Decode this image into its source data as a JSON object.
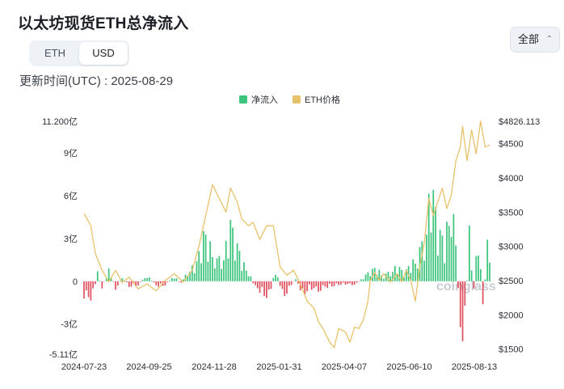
{
  "title": "以太坊现货ETH总净流入",
  "unit_tabs": {
    "eth": "ETH",
    "usd": "USD"
  },
  "updated_text": "更新时间(UTC) : 2025-08-29",
  "range_dropdown": {
    "selected": "全部"
  },
  "watermark": "coinglass",
  "chart_data": {
    "type": "bar+line",
    "x_labels": [
      "2024-07-23",
      "2024-09-25",
      "2024-11-28",
      "2025-01-31",
      "2025-04-07",
      "2025-06-10",
      "2025-08-13"
    ],
    "legend": [
      "净流入",
      "ETH价格"
    ],
    "colors": {
      "inflow_pos": "#3cc47c",
      "inflow_neg": "#e05260",
      "price": "#e8c26a"
    },
    "y_left": {
      "ticks": [
        "11.200亿",
        "9亿",
        "6亿",
        "3亿",
        "0",
        "-3亿",
        "-5.11亿"
      ],
      "tick_values": [
        11.2,
        9,
        6,
        3,
        0,
        -3,
        -5.11
      ],
      "min": -5.11,
      "max": 11.2,
      "unit": "亿 USD"
    },
    "y_right": {
      "ticks": [
        "$4826.113",
        "$4500",
        "$4000",
        "$3500",
        "$3000",
        "$2500",
        "$2000",
        "$1500"
      ],
      "tick_values": [
        4826.113,
        4500,
        4000,
        3500,
        3000,
        2500,
        2000,
        1500
      ],
      "min": 1460,
      "max": 4826.113
    },
    "inflow_knots": [
      [
        0,
        -1.2
      ],
      [
        2,
        -1.6
      ],
      [
        4,
        -1.1
      ],
      [
        6,
        0.7
      ],
      [
        8,
        -0.5
      ],
      [
        11,
        0.9
      ],
      [
        14,
        -0.6
      ],
      [
        17,
        0.3
      ],
      [
        20,
        -0.4
      ],
      [
        24,
        -0.3
      ],
      [
        28,
        0.5
      ],
      [
        32,
        -0.4
      ],
      [
        36,
        -0.3
      ],
      [
        40,
        0.4
      ],
      [
        43,
        -0.2
      ],
      [
        46,
        0.8
      ],
      [
        50,
        1.4
      ],
      [
        53,
        3.5
      ],
      [
        56,
        2.8
      ],
      [
        59,
        1.6
      ],
      [
        62,
        2.1
      ],
      [
        65,
        4.3
      ],
      [
        67,
        3.2
      ],
      [
        70,
        1.6
      ],
      [
        73,
        0.8
      ],
      [
        76,
        -0.6
      ],
      [
        79,
        -0.9
      ],
      [
        82,
        -1.3
      ],
      [
        85,
        1.0
      ],
      [
        88,
        -1.2
      ],
      [
        91,
        -0.7
      ],
      [
        94,
        0.3
      ],
      [
        97,
        -1.1
      ],
      [
        100,
        -0.5
      ],
      [
        103,
        -0.8
      ],
      [
        106,
        -0.6
      ],
      [
        109,
        -0.4
      ],
      [
        112,
        -0.3
      ],
      [
        115,
        -0.2
      ],
      [
        118,
        -0.3
      ],
      [
        121,
        -0.2
      ],
      [
        124,
        0.3
      ],
      [
        127,
        0.8
      ],
      [
        130,
        1.0
      ],
      [
        133,
        0.4
      ],
      [
        136,
        0.8
      ],
      [
        139,
        1.2
      ],
      [
        142,
        0.6
      ],
      [
        145,
        1.3
      ],
      [
        148,
        2.0
      ],
      [
        151,
        3.2
      ],
      [
        154,
        7.6
      ],
      [
        157,
        4.0
      ],
      [
        160,
        2.8
      ],
      [
        163,
        6.9
      ],
      [
        165,
        2.5
      ],
      [
        167,
        -4.6
      ],
      [
        169,
        -3.8
      ],
      [
        171,
        3.9
      ],
      [
        173,
        -0.5
      ],
      [
        175,
        4.0
      ],
      [
        177,
        -2.3
      ],
      [
        179,
        2.9
      ],
      [
        180,
        1.3
      ]
    ],
    "price_knots": [
      [
        0,
        3480
      ],
      [
        3,
        3300
      ],
      [
        5,
        2900
      ],
      [
        8,
        2650
      ],
      [
        11,
        2480
      ],
      [
        14,
        2650
      ],
      [
        17,
        2470
      ],
      [
        20,
        2550
      ],
      [
        24,
        2380
      ],
      [
        28,
        2450
      ],
      [
        32,
        2350
      ],
      [
        36,
        2500
      ],
      [
        40,
        2600
      ],
      [
        44,
        2480
      ],
      [
        48,
        2650
      ],
      [
        51,
        3000
      ],
      [
        54,
        3450
      ],
      [
        57,
        3900
      ],
      [
        60,
        3700
      ],
      [
        63,
        3500
      ],
      [
        65,
        3850
      ],
      [
        68,
        3650
      ],
      [
        70,
        3400
      ],
      [
        73,
        3300
      ],
      [
        75,
        3350
      ],
      [
        78,
        3100
      ],
      [
        81,
        3300
      ],
      [
        84,
        3300
      ],
      [
        87,
        2700
      ],
      [
        90,
        2580
      ],
      [
        93,
        2650
      ],
      [
        96,
        2450
      ],
      [
        99,
        2200
      ],
      [
        102,
        2100
      ],
      [
        104,
        1900
      ],
      [
        106,
        1800
      ],
      [
        109,
        1600
      ],
      [
        111,
        1520
      ],
      [
        113,
        1800
      ],
      [
        116,
        1750
      ],
      [
        118,
        1600
      ],
      [
        120,
        1820
      ],
      [
        122,
        1800
      ],
      [
        124,
        1930
      ],
      [
        126,
        2200
      ],
      [
        127,
        2500
      ],
      [
        129,
        2620
      ],
      [
        131,
        2500
      ],
      [
        133,
        2600
      ],
      [
        136,
        2480
      ],
      [
        139,
        2600
      ],
      [
        141,
        2480
      ],
      [
        143,
        2650
      ],
      [
        145,
        2500
      ],
      [
        147,
        2200
      ],
      [
        149,
        2700
      ],
      [
        151,
        3050
      ],
      [
        153,
        3700
      ],
      [
        155,
        3450
      ],
      [
        157,
        3650
      ],
      [
        159,
        3850
      ],
      [
        161,
        3550
      ],
      [
        163,
        3750
      ],
      [
        165,
        4250
      ],
      [
        167,
        4450
      ],
      [
        168,
        4750
      ],
      [
        170,
        4250
      ],
      [
        172,
        4700
      ],
      [
        174,
        4350
      ],
      [
        176,
        4826
      ],
      [
        178,
        4450
      ],
      [
        180,
        4480
      ]
    ]
  }
}
